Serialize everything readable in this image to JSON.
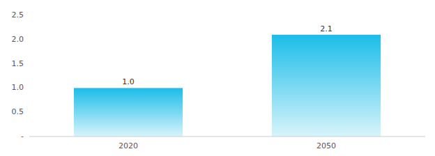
{
  "chart_data": {
    "type": "bar",
    "categories": [
      "2020",
      "2050"
    ],
    "values": [
      1.0,
      2.1
    ],
    "value_labels": [
      "1.0",
      "2.1"
    ],
    "data_labels": true,
    "color": "#1BBDE8",
    "ylim": [
      0,
      2.5
    ],
    "yticks": [
      {
        "value": 0,
        "label": "-"
      },
      0.5,
      {
        "value": 1.0,
        "label": "1.0"
      },
      1.5,
      {
        "value": 2.0,
        "label": "2.0"
      },
      2.5
    ],
    "grid": false
  }
}
